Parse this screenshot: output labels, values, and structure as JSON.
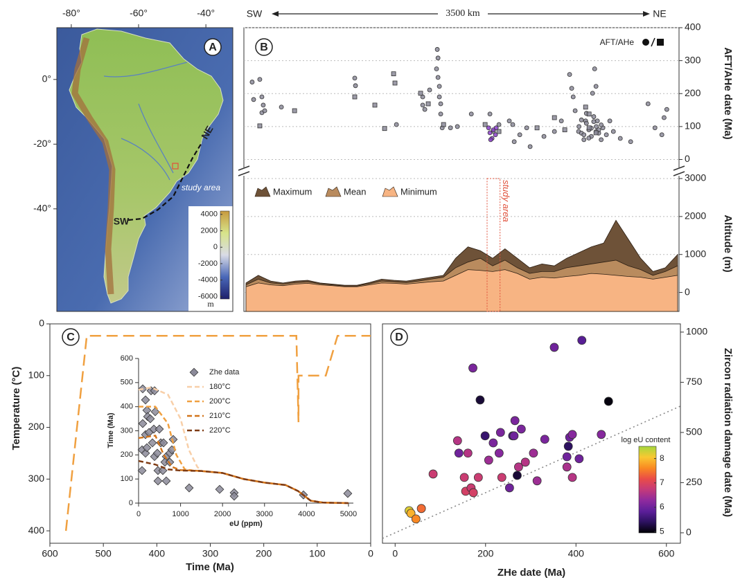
{
  "chart_data": [
    {
      "type": "map",
      "label": "A",
      "xlim": [
        -84.3,
        -32
      ],
      "ylim": [
        -71.7,
        16
      ],
      "xticks": [
        {
          "value": -80,
          "label": "-80°"
        },
        {
          "value": -60,
          "label": "-60°"
        },
        {
          "value": -40,
          "label": "-40°"
        }
      ],
      "yticks": [
        {
          "value": 0,
          "label": "0°"
        },
        {
          "value": -20,
          "label": "-20°"
        },
        {
          "value": -40,
          "label": "-40°"
        }
      ],
      "annotations": [
        "SW",
        "NE",
        "study area"
      ],
      "colorbar": {
        "lim": [
          -6300,
          4400
        ],
        "ticks": [
          4000,
          2000,
          0,
          -2000,
          -4000,
          -6000
        ],
        "unit": "m",
        "colors": [
          "#1d1f6b",
          "#4a68b8",
          "#d9dbe6",
          "#d7e48a",
          "#c79a3e"
        ]
      }
    },
    {
      "type": "scatter",
      "label": "B",
      "direction_labels": [
        "SW",
        "3500 km",
        "NE"
      ],
      "ylabel": "AFT/AHe date (Ma)",
      "legend_label": "AFT/AHe",
      "xlim": [
        0,
        3500
      ],
      "ylim": [
        -20,
        400
      ],
      "yticks": [
        0,
        100,
        200,
        300,
        400
      ],
      "grid": true,
      "series": [
        {
          "marker": "circle",
          "color": "#8b8a99",
          "x": [
            50,
            62,
            112,
            129,
            140,
            129,
            152,
            287,
            882,
            888,
            1220,
            1433,
            1433,
            1450,
            1489,
            1551,
            1557,
            1545,
            1557,
            1568,
            1568,
            1579,
            1579,
            1591,
            1658,
            1714,
            1827,
            1978,
            2006,
            2051,
            2135,
            2163,
            2175,
            2220,
            2276,
            2304,
            2416,
            2501,
            2557,
            2624,
            2641,
            2653,
            2669,
            2697,
            2754,
            2810,
            2827,
            2838,
            2849,
            2894,
            2922,
            2950,
            2979,
            3035,
            3119,
            3260,
            3316,
            3390,
            3412,
            3372,
            2700,
            2720,
            2740,
            2760,
            2780,
            2800,
            2820,
            2840,
            2860,
            2880,
            2720,
            2760,
            2800,
            2840,
            2880,
            2740,
            2780,
            2820,
            2860
          ],
          "values": [
            235,
            182,
            243,
            190,
            165,
            142,
            148,
            159,
            247,
            224,
            106,
            190,
            165,
            152,
            211,
            334,
            308,
            275,
            249,
            222,
            190,
            169,
            138,
            96,
            96,
            100,
            138,
            138,
            85,
            106,
            117,
            106,
            54,
            75,
            96,
            39,
            70,
            85,
            117,
            258,
            216,
            190,
            148,
            85,
            117,
            201,
            275,
            222,
            117,
            96,
            75,
            117,
            85,
            64,
            54,
            169,
            96,
            127,
            152,
            75,
            100,
            80,
            60,
            110,
            90,
            70,
            130,
            100,
            80,
            60,
            120,
            140,
            95,
            85,
            105,
            75,
            65,
            115,
            90
          ]
        },
        {
          "marker": "square",
          "color": "#8b8a99",
          "x": [
            112,
            394,
            882,
            1045,
            1124,
            1197,
            1208,
            1416,
            1478,
            1602,
            1939,
            2051,
            2360,
            2501,
            2585,
            2754,
            2782,
            2782,
            2838
          ],
          "values": [
            102,
            148,
            190,
            165,
            94,
            260,
            232,
            201,
            169,
            106,
            106,
            85,
            96,
            127,
            90,
            159,
            138,
            96,
            81
          ]
        },
        {
          "marker": "circle",
          "color": "#8a3fc8",
          "x": [
            1967,
            1978,
            1995,
            2006,
            2023,
            1984,
            2029
          ],
          "values": [
            96,
            81,
            64,
            90,
            75,
            60,
            96
          ]
        }
      ]
    },
    {
      "type": "area",
      "ylabel": "Altitude (m)",
      "xlim": [
        0,
        3500
      ],
      "ylim": [
        -500,
        3000
      ],
      "yticks": [
        0,
        1000,
        2000,
        3000
      ],
      "grid": true,
      "x": [
        0,
        100,
        200,
        300,
        400,
        500,
        600,
        700,
        800,
        900,
        1000,
        1100,
        1200,
        1300,
        1400,
        1500,
        1600,
        1700,
        1800,
        1900,
        2000,
        2100,
        2200,
        2300,
        2400,
        2500,
        2600,
        2700,
        2800,
        2900,
        3000,
        3100,
        3200,
        3300,
        3400,
        3500
      ],
      "series": [
        {
          "name": "Maximum",
          "color": "#6e5238",
          "values": [
            250,
            450,
            300,
            250,
            300,
            320,
            250,
            220,
            190,
            190,
            260,
            350,
            320,
            300,
            350,
            400,
            450,
            900,
            1200,
            1100,
            900,
            1150,
            900,
            650,
            750,
            700,
            900,
            1050,
            1200,
            1300,
            1900,
            1400,
            900,
            550,
            650,
            1000
          ]
        },
        {
          "name": "Mean",
          "color": "#b98b5e",
          "values": [
            200,
            350,
            250,
            220,
            260,
            280,
            230,
            200,
            170,
            170,
            230,
            300,
            280,
            260,
            300,
            350,
            400,
            650,
            800,
            900,
            700,
            850,
            650,
            500,
            550,
            550,
            650,
            700,
            750,
            800,
            850,
            700,
            600,
            450,
            550,
            700
          ]
        },
        {
          "name": "Minimum",
          "color": "#f7b483",
          "values": [
            150,
            250,
            200,
            180,
            220,
            240,
            200,
            180,
            150,
            150,
            200,
            250,
            240,
            220,
            250,
            280,
            300,
            450,
            600,
            580,
            550,
            600,
            500,
            350,
            400,
            380,
            420,
            450,
            500,
            480,
            450,
            420,
            400,
            350,
            400,
            450
          ]
        }
      ],
      "highlight": {
        "label": "study area",
        "x": [
          1955,
          2060
        ],
        "color": "#e0503a"
      }
    },
    {
      "type": "line",
      "label": "C",
      "xlabel": "Time (Ma)",
      "ylabel": "Temperature (°C)",
      "xlim": [
        600,
        0
      ],
      "ylim": [
        424,
        0
      ],
      "xticks": [
        600,
        500,
        400,
        300,
        200,
        100,
        0
      ],
      "yticks": [
        0,
        100,
        200,
        300,
        400
      ],
      "color": "#f0a040",
      "x": [
        570,
        531,
        139,
        135,
        135,
        84,
        62,
        0
      ],
      "values": [
        400,
        23,
        23,
        190,
        100,
        100,
        23,
        23
      ]
    },
    {
      "type": "scatter",
      "xlabel": "eU (ppm)",
      "ylabel": "Time (Ma)",
      "xlim": [
        0,
        5100
      ],
      "ylim": [
        0,
        600
      ],
      "xticks": [
        0,
        1000,
        2000,
        3000,
        4000,
        5000
      ],
      "yticks": [
        0,
        100,
        200,
        300,
        400,
        500,
        600
      ],
      "series": [
        {
          "name": "Zhe data",
          "marker": "diamond",
          "color": "#8b8a99",
          "x": [
            99,
            165,
            198,
            99,
            215,
            280,
            165,
            248,
            83,
            165,
            330,
            380,
            446,
            363,
            528,
            462,
            578,
            660,
            743,
            627,
            743,
            660,
            462,
            396,
            297,
            495,
            594,
            825,
            792,
            380,
            198,
            83,
            1205,
            1931,
            2277,
            2277,
            3927,
            4983
          ],
          "values": [
            474,
            428,
            385,
            330,
            359,
            350,
            284,
            293,
            221,
            207,
            250,
            193,
            207,
            307,
            250,
            135,
            135,
            193,
            207,
            170,
            170,
            92,
            92,
            379,
            466,
            307,
            250,
            264,
            221,
            466,
            230,
            135,
            63,
            57,
            43,
            29,
            34,
            40
          ]
        },
        {
          "name": "180°C",
          "line": "dashed",
          "color": "#f8cfa8",
          "x": [
            0,
            300,
            700,
            1000,
            1200,
            1400,
            1500,
            2000,
            2500,
            3000,
            3500,
            3800,
            4100,
            4400,
            5000
          ],
          "values": [
            470,
            480,
            450,
            350,
            220,
            150,
            133,
            125,
            100,
            85,
            75,
            50,
            10,
            2,
            0
          ]
        },
        {
          "name": "200°C",
          "line": "dashed",
          "color": "#f0a040",
          "x": [
            0,
            400,
            700,
            900,
            1100,
            1300,
            1500,
            2000,
            2500,
            3000,
            3500,
            3800,
            4100,
            4400,
            5000
          ],
          "values": [
            400,
            400,
            330,
            200,
            140,
            135,
            133,
            125,
            100,
            85,
            75,
            50,
            10,
            2,
            0
          ]
        },
        {
          "name": "210°C",
          "line": "dashed",
          "color": "#d2741a",
          "x": [
            0,
            400,
            600,
            800,
            1000,
            1300,
            1500,
            2000,
            2500,
            3000,
            3500,
            3800,
            4100,
            4400,
            5000
          ],
          "values": [
            270,
            280,
            200,
            150,
            137,
            135,
            133,
            125,
            100,
            85,
            75,
            50,
            10,
            2,
            0
          ]
        },
        {
          "name": "220°C",
          "line": "dashed",
          "color": "#7e3a12",
          "x": [
            0,
            400,
            700,
            1000,
            1300,
            1500,
            2000,
            2500,
            3000,
            3500,
            3800,
            4100,
            4400,
            5000
          ],
          "values": [
            175,
            160,
            140,
            135,
            134,
            133,
            125,
            100,
            85,
            75,
            50,
            10,
            2,
            0
          ]
        }
      ]
    },
    {
      "type": "scatter",
      "label": "D",
      "xlabel": "ZHe date (Ma)",
      "ylabel": "Zircon radiation damage date (Ma)",
      "xlim": [
        -28,
        631
      ],
      "ylim": [
        -52,
        1041
      ],
      "xticks": [
        0,
        200,
        400,
        600
      ],
      "yticks": [
        0,
        250,
        500,
        750,
        1000
      ],
      "reference_line": true,
      "x": [
        31,
        35,
        46,
        58,
        84,
        138,
        141,
        153,
        156,
        168,
        173,
        184,
        161,
        172,
        188,
        199,
        207,
        217,
        230,
        233,
        236,
        253,
        260,
        263,
        265,
        273,
        279,
        288,
        306,
        314,
        331,
        352,
        413,
        380,
        380,
        383,
        386,
        392,
        392,
        407,
        456,
        472,
        270
      ],
      "values": [
        110,
        97,
        69,
        121,
        293,
        459,
        397,
        276,
        207,
        224,
        200,
        276,
        397,
        821,
        662,
        483,
        362,
        448,
        397,
        500,
        276,
        224,
        483,
        483,
        559,
        328,
        517,
        352,
        397,
        259,
        466,
        924,
        959,
        328,
        379,
        431,
        476,
        276,
        490,
        369,
        490,
        655,
        286
      ],
      "c": [
        8.2,
        7.9,
        7.6,
        7.4,
        6.8,
        6.6,
        6.0,
        6.8,
        6.9,
        6.8,
        6.9,
        6.8,
        6.6,
        6.1,
        5.2,
        5.5,
        6.4,
        6.1,
        6.2,
        6.1,
        6.8,
        6.0,
        5.6,
        6.0,
        6.1,
        6.6,
        6.1,
        6.6,
        6.4,
        6.4,
        6.1,
        6.0,
        5.8,
        6.5,
        6.0,
        5.4,
        6.0,
        6.6,
        6.2,
        6.0,
        6.2,
        5.0,
        5.2
      ],
      "colorbar": {
        "title": "log eU content",
        "lim": [
          4.95,
          8.5
        ],
        "ticks": [
          5,
          6,
          7,
          8
        ],
        "colors": [
          "#000004",
          "#2c115f",
          "#5c1f9a",
          "#8f2a9e",
          "#c43a7a",
          "#ea4c48",
          "#f98a22",
          "#f9c832",
          "#a6d83c"
        ]
      }
    }
  ]
}
